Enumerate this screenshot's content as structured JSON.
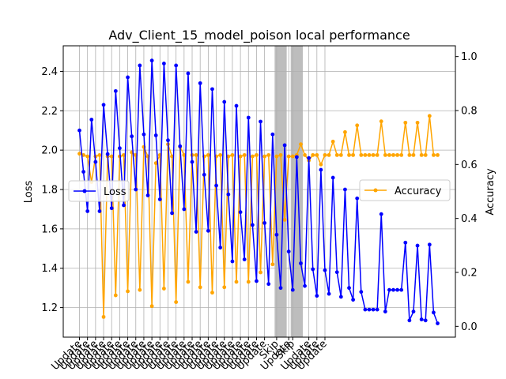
{
  "chart_data": {
    "type": "line",
    "title": "Adv_Client_15_model_poison local performance",
    "ylabel_left": "Loss",
    "ylabel_right": "Accuracy",
    "ylim_left": [
      1.05,
      2.53
    ],
    "ylim_right": [
      -0.04,
      1.04
    ],
    "yticks_left": [
      "1.2",
      "1.4",
      "1.6",
      "1.8",
      "2.0",
      "2.2",
      "2.4"
    ],
    "yticks_right": [
      "0.0",
      "0.2",
      "0.4",
      "0.6",
      "0.8",
      "1.0"
    ],
    "grid": true,
    "legend_left": {
      "label": "Loss",
      "placement": "center-left"
    },
    "legend_right": {
      "label": "Accuracy",
      "placement": "center-right"
    },
    "x_tick_labels": [
      "Update",
      "Update",
      "Update",
      "Update",
      "Update",
      "Update",
      "Update",
      "Update",
      "Update",
      "Update",
      "Update",
      "Update",
      "Update",
      "Update",
      "Update",
      "Update",
      "Update",
      "Update",
      "Update",
      "Update",
      "Update",
      "Update",
      "Update",
      "Update",
      "Skip",
      "Update",
      "Skip",
      "Update",
      "Update",
      "Update"
    ],
    "x_tick_positions": [
      0,
      2,
      4,
      6,
      8,
      10,
      12,
      14,
      16,
      18,
      20,
      22,
      24,
      26,
      28,
      30,
      32,
      34,
      36,
      38,
      40,
      42,
      44,
      46,
      49,
      52,
      53,
      57,
      59,
      61
    ],
    "skip_spans": [
      [
        49,
        51
      ],
      [
        53,
        55
      ]
    ],
    "series": [
      {
        "name": "Loss",
        "color": "#0000ff",
        "axis": "left",
        "values": [
          2.1,
          1.89,
          1.69,
          2.155,
          1.94,
          1.69,
          2.23,
          1.98,
          1.705,
          2.3,
          2.01,
          1.72,
          2.37,
          2.07,
          1.8,
          2.43,
          2.08,
          1.77,
          2.455,
          2.075,
          1.75,
          2.44,
          2.05,
          1.68,
          2.43,
          2.02,
          1.7,
          2.39,
          1.94,
          1.585,
          2.34,
          1.875,
          1.59,
          2.31,
          1.82,
          1.505,
          2.245,
          1.775,
          1.435,
          2.225,
          1.685,
          1.445,
          2.165,
          1.62,
          1.335,
          2.145,
          1.63,
          1.32,
          2.08,
          1.57,
          1.3,
          2.025,
          1.485,
          1.29,
          1.965,
          1.425,
          1.31,
          1.96,
          1.395,
          1.26,
          1.9,
          1.39,
          1.27,
          1.86,
          1.38,
          1.255,
          1.8,
          1.3,
          1.24,
          1.755,
          1.28,
          1.19,
          1.19,
          1.19,
          1.19,
          1.675,
          1.18,
          1.29,
          1.29,
          1.29,
          1.29,
          1.53,
          1.135,
          1.18,
          1.515,
          1.14,
          1.135,
          1.52,
          1.175,
          1.12
        ]
      },
      {
        "name": "Accuracy",
        "color": "#ffa500",
        "axis": "right",
        "values": [
          0.64,
          0.635,
          0.63,
          0.535,
          0.63,
          0.635,
          0.035,
          0.63,
          0.63,
          0.115,
          0.63,
          0.635,
          0.13,
          0.645,
          0.635,
          0.135,
          0.665,
          0.63,
          0.075,
          0.605,
          0.635,
          0.14,
          0.675,
          0.63,
          0.09,
          0.665,
          0.635,
          0.165,
          0.635,
          0.635,
          0.145,
          0.63,
          0.635,
          0.125,
          0.63,
          0.635,
          0.145,
          0.63,
          0.635,
          0.165,
          0.63,
          0.635,
          0.165,
          0.63,
          0.635,
          0.2,
          0.63,
          0.635,
          0.23,
          0.63,
          0.635,
          0.395,
          0.63,
          0.63,
          0.635,
          0.675,
          0.635,
          0.615,
          0.635,
          0.635,
          0.6,
          0.635,
          0.635,
          0.685,
          0.635,
          0.635,
          0.72,
          0.635,
          0.635,
          0.745,
          0.635,
          0.635,
          0.635,
          0.635,
          0.635,
          0.76,
          0.635,
          0.635,
          0.635,
          0.635,
          0.635,
          0.755,
          0.635,
          0.635,
          0.755,
          0.635,
          0.635,
          0.78,
          0.635,
          0.635
        ]
      }
    ]
  }
}
